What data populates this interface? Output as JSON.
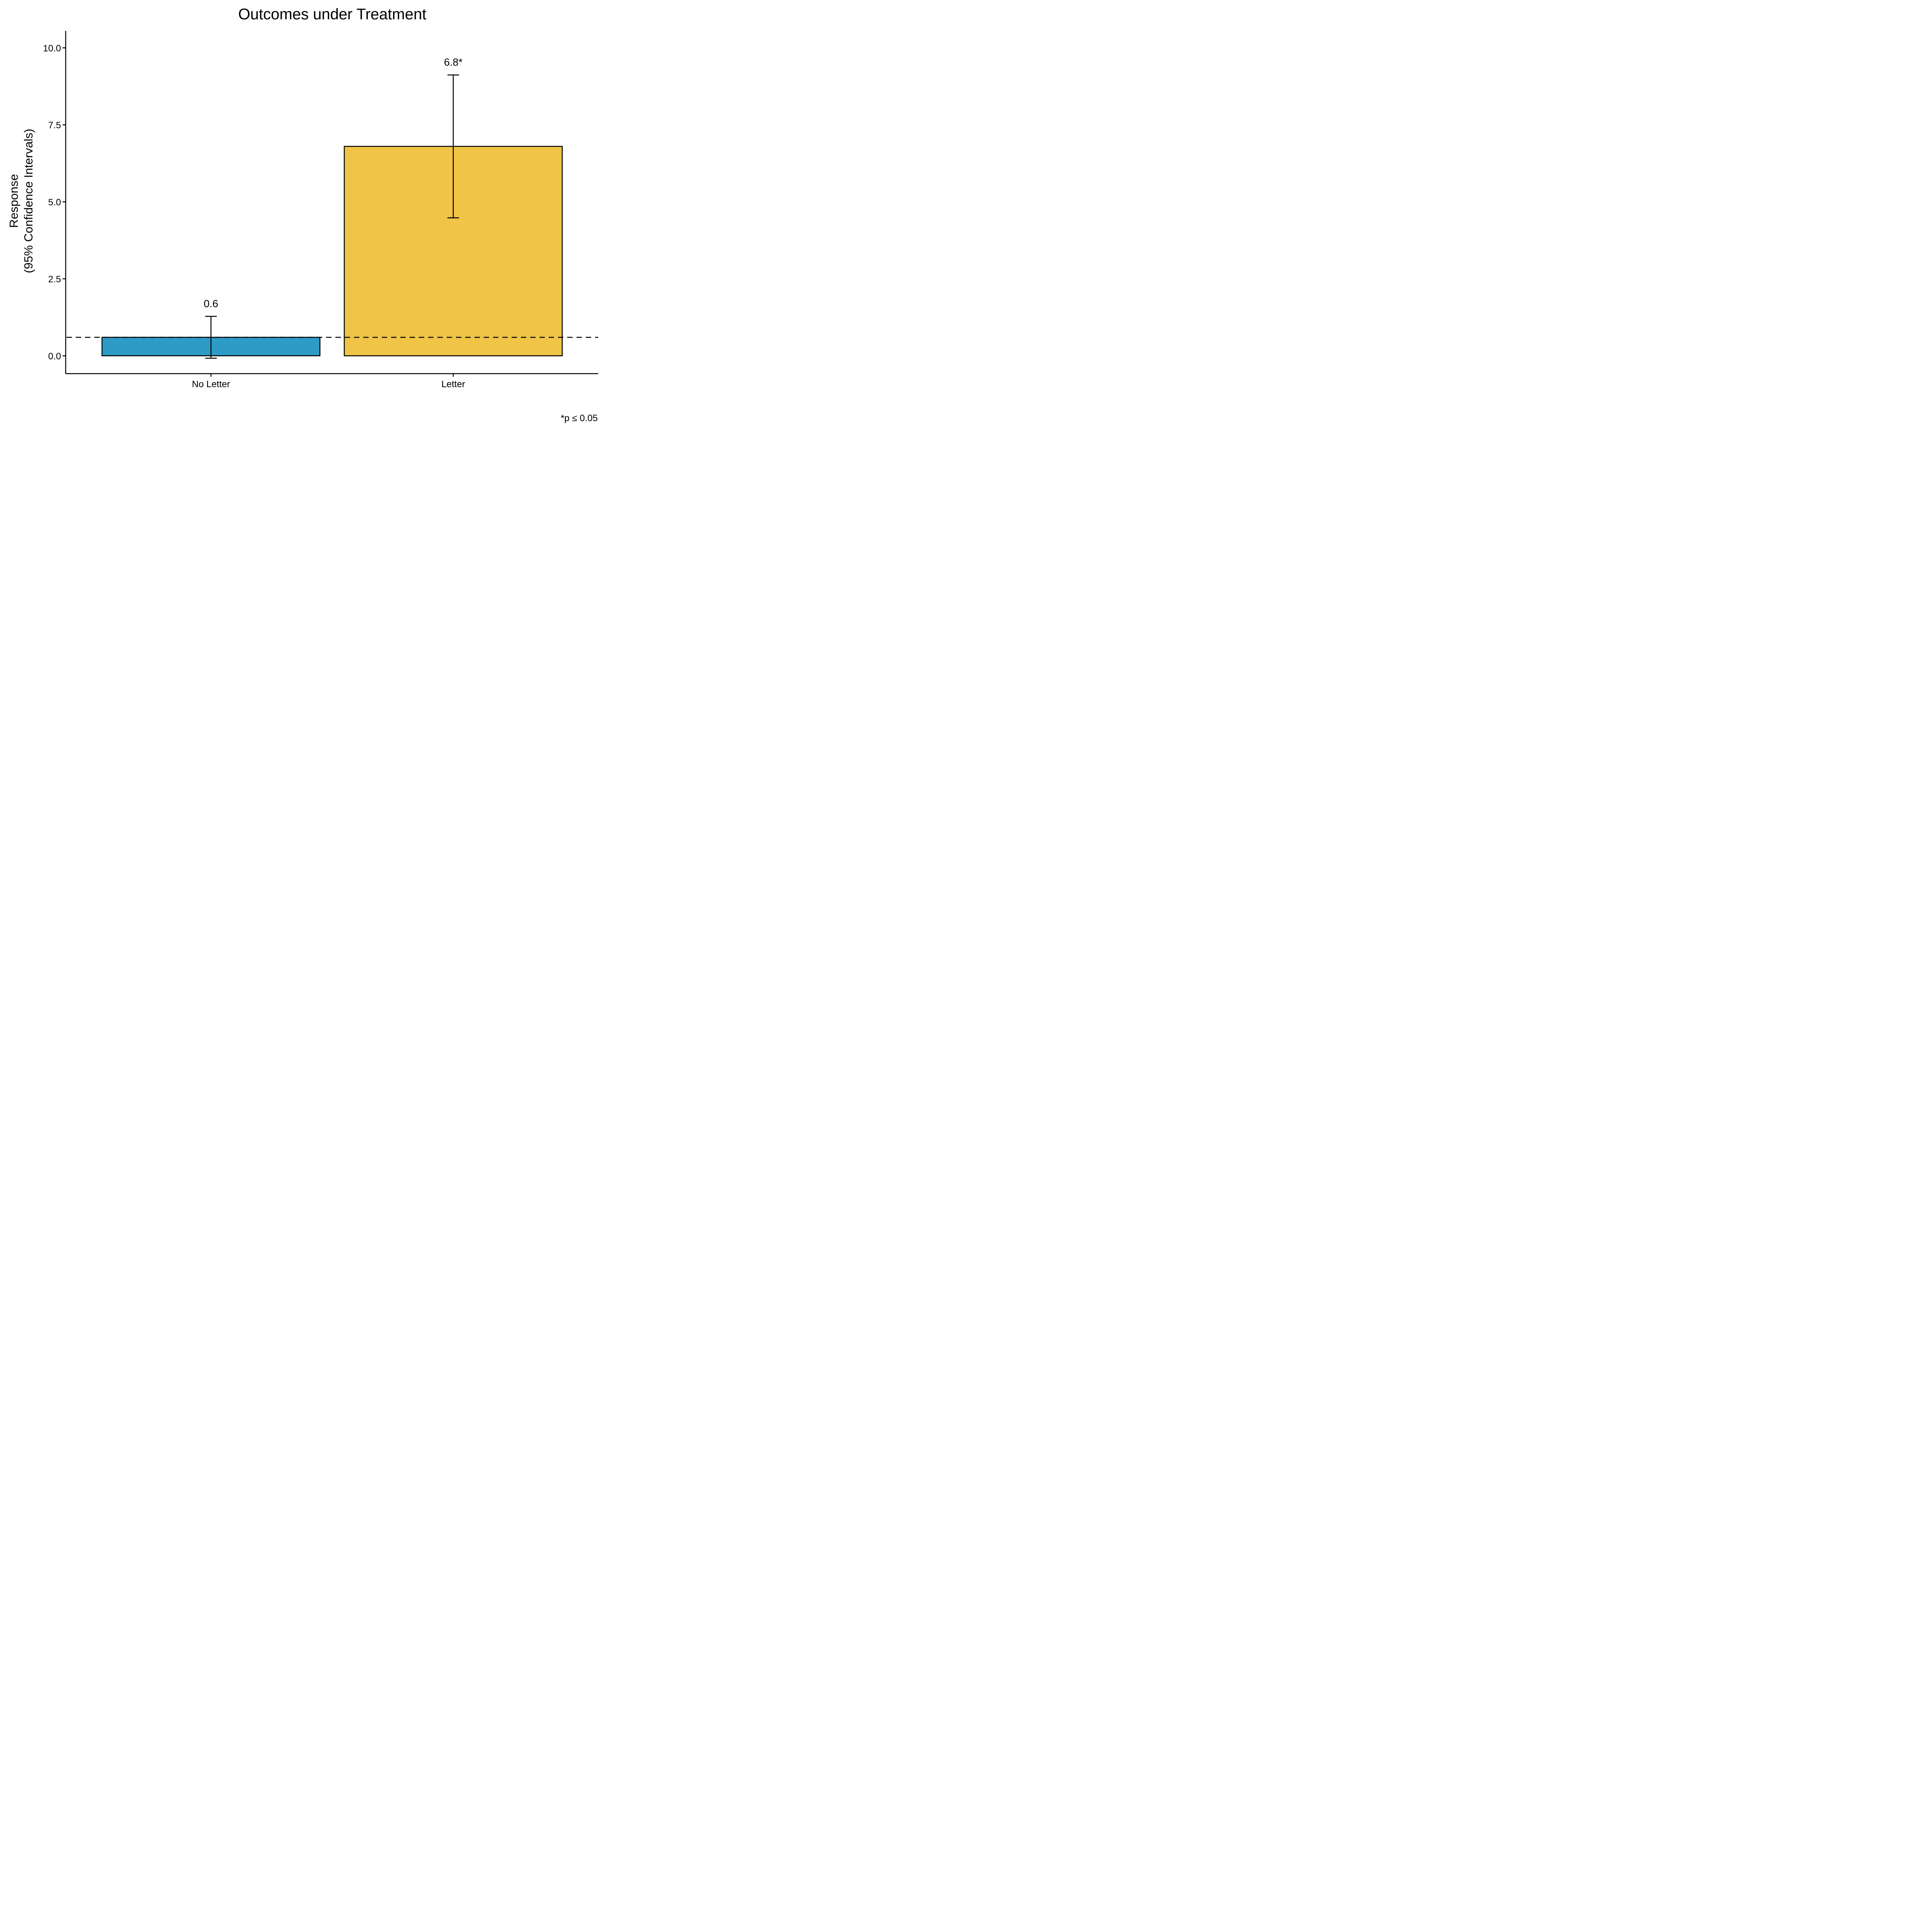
{
  "chart_data": {
    "type": "bar",
    "title": "Outcomes under Treatment",
    "ylabel_lines": [
      "Response",
      "(95% Confidence Intervals)"
    ],
    "xlabel": "",
    "categories": [
      "No Letter",
      "Letter"
    ],
    "values": [
      0.6,
      6.8
    ],
    "ci_low": [
      -0.08,
      4.48
    ],
    "ci_high": [
      1.28,
      9.12
    ],
    "data_labels": [
      "0.6",
      "6.8*"
    ],
    "bar_colors": [
      "#2E9BC6",
      "#F0C446"
    ],
    "ylim": [
      -0.58,
      10.55
    ],
    "yticks": [
      0.0,
      2.5,
      5.0,
      7.5,
      10.0
    ],
    "ytick_labels": [
      "0.0",
      "2.5",
      "5.0",
      "7.5",
      "10.0"
    ],
    "reference_line": 0.6,
    "grid": false,
    "footnote": "*p ≤ 0.05"
  }
}
